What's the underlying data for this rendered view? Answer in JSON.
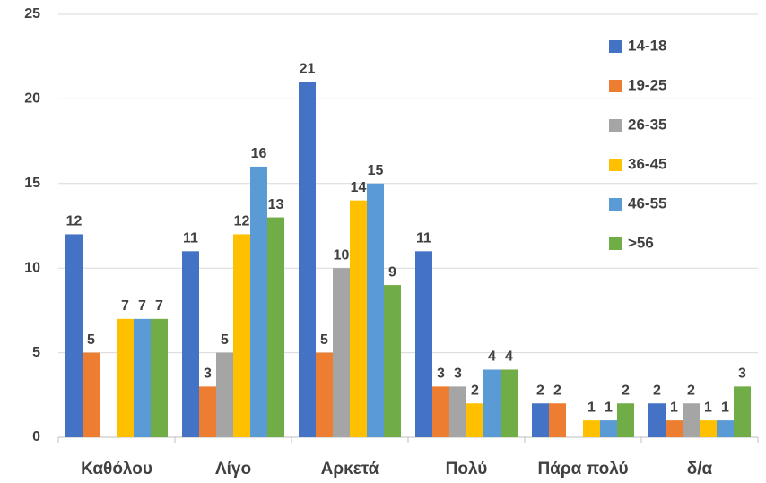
{
  "chart_data": {
    "type": "bar",
    "categories": [
      "Καθόλου",
      "Λίγο",
      "Αρκετά",
      "Πολύ",
      "Πάρα πολύ",
      "δ/α"
    ],
    "series": [
      {
        "name": "14-18",
        "color": "#4472c4",
        "values": [
          12,
          11,
          21,
          11,
          2,
          2
        ]
      },
      {
        "name": "19-25",
        "color": "#ed7d31",
        "values": [
          5,
          3,
          5,
          3,
          2,
          1
        ]
      },
      {
        "name": "26-35",
        "color": "#a5a5a5",
        "values": [
          null,
          5,
          10,
          3,
          null,
          2
        ]
      },
      {
        "name": "36-45",
        "color": "#ffc000",
        "values": [
          7,
          12,
          14,
          2,
          1,
          1
        ]
      },
      {
        "name": "46-55",
        "color": "#5b9bd5",
        "values": [
          7,
          16,
          15,
          4,
          1,
          1
        ]
      },
      {
        "name": ">56",
        "color": "#70ad47",
        "values": [
          7,
          13,
          9,
          4,
          2,
          3
        ]
      }
    ],
    "ylim": [
      0,
      25
    ],
    "yticks": [
      0,
      5,
      10,
      15,
      20,
      25
    ],
    "grid": true,
    "legend": "right"
  }
}
